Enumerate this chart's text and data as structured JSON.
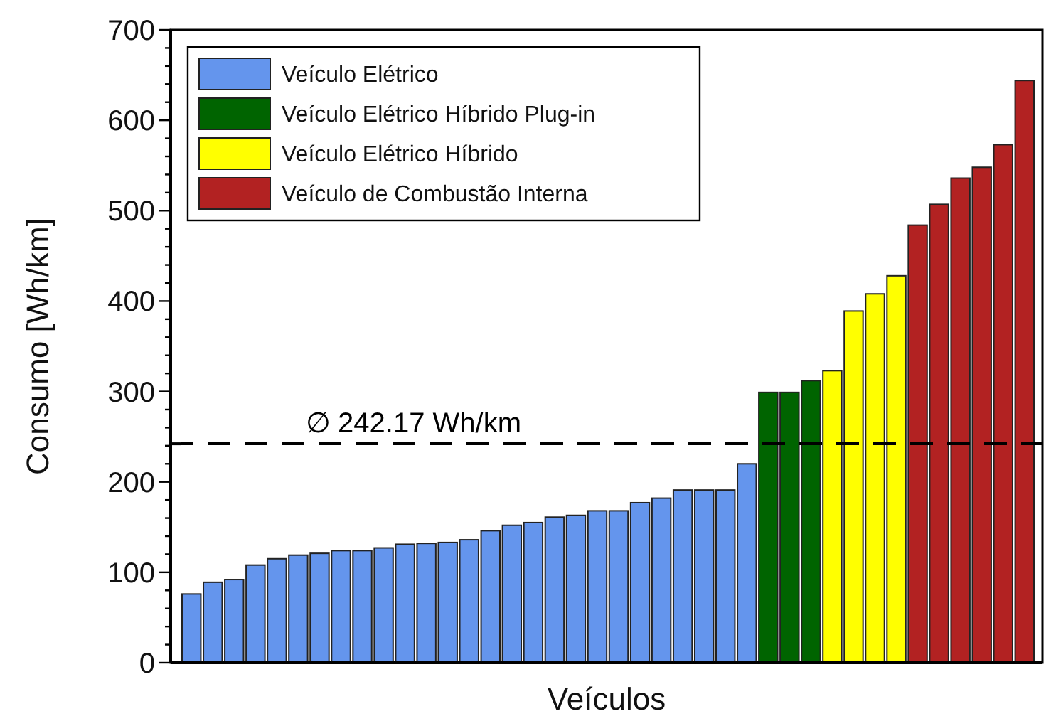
{
  "chart_data": {
    "type": "bar",
    "xlabel": "Veículos",
    "ylabel": "Consumo  [Wh/km]",
    "categories": [
      null,
      null,
      null,
      null,
      null,
      null,
      null,
      null,
      null,
      null,
      null,
      null,
      null,
      null,
      null,
      null,
      null,
      null,
      null,
      null,
      null,
      null,
      null,
      null,
      null,
      null,
      null,
      null,
      null,
      null,
      null,
      null,
      null,
      null,
      null,
      null,
      null,
      null,
      null,
      null
    ],
    "series": [
      {
        "name": "Veículo Elétrico",
        "color": "#6495ed",
        "values": [
          76,
          89,
          92,
          108,
          115,
          119,
          121,
          124,
          124,
          127,
          131,
          132,
          133,
          136,
          146,
          152,
          155,
          161,
          163,
          168,
          168,
          177,
          182,
          191,
          191,
          191,
          220,
          null,
          null,
          null,
          null,
          null,
          null,
          null,
          null,
          null,
          null,
          null,
          null,
          null
        ]
      },
      {
        "name": "Veículo Elétrico Híbrido Plug-in",
        "color": "#006400",
        "values": [
          null,
          null,
          null,
          null,
          null,
          null,
          null,
          null,
          null,
          null,
          null,
          null,
          null,
          null,
          null,
          null,
          null,
          null,
          null,
          null,
          null,
          null,
          null,
          null,
          null,
          null,
          null,
          299,
          299,
          312,
          null,
          null,
          null,
          null,
          null,
          null,
          null,
          null,
          null,
          null
        ]
      },
      {
        "name": "Veículo Elétrico Híbrido",
        "color": "#ffff00",
        "values": [
          null,
          null,
          null,
          null,
          null,
          null,
          null,
          null,
          null,
          null,
          null,
          null,
          null,
          null,
          null,
          null,
          null,
          null,
          null,
          null,
          null,
          null,
          null,
          null,
          null,
          null,
          null,
          null,
          null,
          null,
          323,
          389,
          408,
          428,
          null,
          null,
          null,
          null,
          null,
          null
        ]
      },
      {
        "name": "Veículo de Combustão Interna",
        "color": "#b22222",
        "values": [
          null,
          null,
          null,
          null,
          null,
          null,
          null,
          null,
          null,
          null,
          null,
          null,
          null,
          null,
          null,
          null,
          null,
          null,
          null,
          null,
          null,
          null,
          null,
          null,
          null,
          null,
          null,
          null,
          null,
          null,
          null,
          null,
          null,
          null,
          484,
          507,
          536,
          548,
          573,
          644
        ]
      }
    ],
    "ylim": [
      0,
      700
    ],
    "yticks": [
      0,
      {
        "value": 20,
        "label": null
      },
      {
        "value": 40,
        "label": null
      },
      {
        "value": 60,
        "label": null
      },
      {
        "value": 80,
        "label": null
      },
      100,
      {
        "value": 120,
        "label": null
      },
      {
        "value": 140,
        "label": null
      },
      {
        "value": 160,
        "label": null
      },
      {
        "value": 180,
        "label": null
      },
      200,
      {
        "value": 220,
        "label": null
      },
      {
        "value": 240,
        "label": null
      },
      {
        "value": 260,
        "label": null
      },
      {
        "value": 280,
        "label": null
      },
      300,
      {
        "value": 320,
        "label": null
      },
      {
        "value": 340,
        "label": null
      },
      {
        "value": 360,
        "label": null
      },
      {
        "value": 380,
        "label": null
      },
      400,
      {
        "value": 420,
        "label": null
      },
      {
        "value": 440,
        "label": null
      },
      {
        "value": 460,
        "label": null
      },
      {
        "value": 480,
        "label": null
      },
      500,
      {
        "value": 520,
        "label": null
      },
      {
        "value": 540,
        "label": null
      },
      {
        "value": 560,
        "label": null
      },
      {
        "value": 580,
        "label": null
      },
      600,
      {
        "value": 620,
        "label": null
      },
      {
        "value": 640,
        "label": null
      },
      {
        "value": 660,
        "label": null
      },
      {
        "value": 680,
        "label": null
      },
      700
    ],
    "ref_lines": [
      {
        "axis": "y",
        "value": 242.17,
        "label": "∅ 242.17 Wh/km",
        "color": "#000000",
        "line_style": "dashed"
      }
    ],
    "legend": "top left",
    "grid": false
  }
}
